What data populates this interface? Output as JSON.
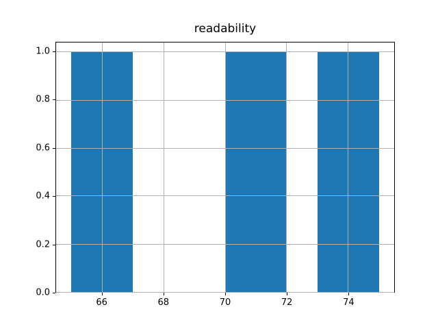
{
  "chart_data": {
    "type": "bar",
    "subtype": "histogram",
    "title": "readability",
    "xlabel": "",
    "ylabel": "",
    "bars": [
      {
        "x_start": 65,
        "x_end": 67,
        "height": 1.0
      },
      {
        "x_start": 70,
        "x_end": 72,
        "height": 1.0
      },
      {
        "x_start": 73,
        "x_end": 75,
        "height": 1.0
      }
    ],
    "xlim": [
      64.5,
      75.5
    ],
    "ylim": [
      0,
      1.04
    ],
    "x_ticks": [
      {
        "value": 66,
        "label": "66"
      },
      {
        "value": 68,
        "label": "68"
      },
      {
        "value": 70,
        "label": "70"
      },
      {
        "value": 72,
        "label": "72"
      },
      {
        "value": 74,
        "label": "74"
      }
    ],
    "y_ticks": [
      {
        "value": 0.0,
        "label": "0.0"
      },
      {
        "value": 0.2,
        "label": "0.2"
      },
      {
        "value": 0.4,
        "label": "0.4"
      },
      {
        "value": 0.6,
        "label": "0.6"
      },
      {
        "value": 0.8,
        "label": "0.8"
      },
      {
        "value": 1.0,
        "label": "1.0"
      }
    ],
    "grid": true,
    "grid_over_bars": true,
    "legend": null,
    "colors": {
      "bar": "#1f77b4",
      "grid": "#b0b0b0",
      "frame": "#000000",
      "text": "#000000",
      "background": "#ffffff"
    }
  }
}
